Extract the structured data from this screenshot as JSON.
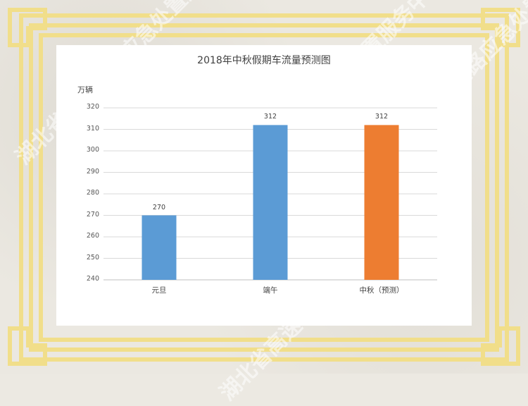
{
  "watermark": "湖北省高速公路应急处置服务中心",
  "chart_data": {
    "type": "bar",
    "title": "2018年中秋假期车流量预测图",
    "ylabel": "万辆",
    "xlabel": "",
    "categories": [
      "元旦",
      "端午",
      "中秋（预测）"
    ],
    "values": [
      270,
      312,
      312
    ],
    "bar_colors": [
      "#5b9bd5",
      "#5b9bd5",
      "#ed7d31"
    ],
    "ylim": [
      240,
      320
    ],
    "yticks": [
      240,
      250,
      260,
      270,
      280,
      290,
      300,
      310,
      320
    ],
    "grid": true,
    "data_labels": true
  }
}
